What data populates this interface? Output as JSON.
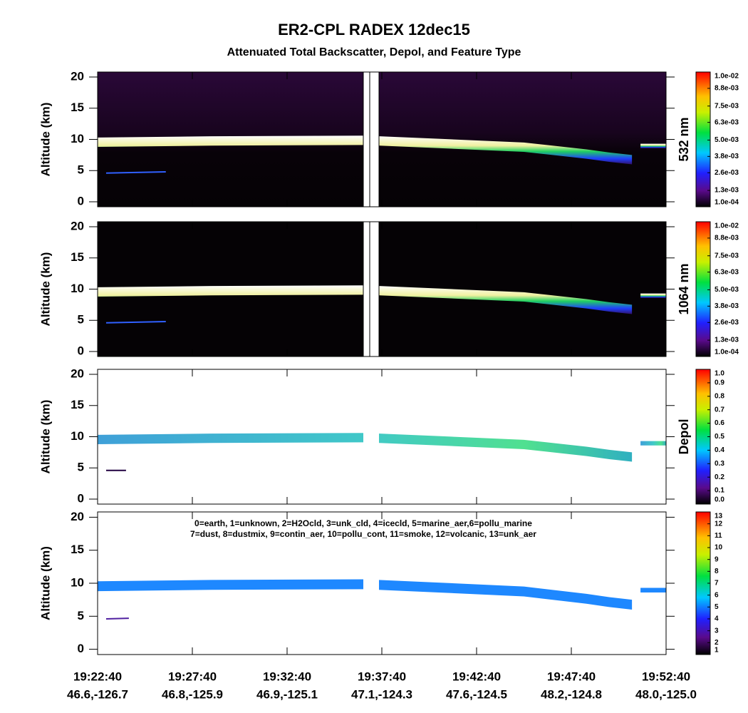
{
  "title": "ER2-CPL RADEX 12dec15",
  "subtitle": "Attenuated Total Backscatter, Depol, and Feature Type",
  "chart_data": [
    {
      "type": "heatmap",
      "ylabel": "Altitude (km)",
      "ylim": [
        -0.8,
        20.8
      ],
      "yticks": [
        0,
        5,
        10,
        15,
        20
      ],
      "colorbar": {
        "label": "532 nm",
        "clim": [
          0.0001,
          0.01
        ],
        "ticks": [
          {
            "value": 0.0001,
            "label": "1.0e-04"
          },
          {
            "value": 0.0013,
            "label": "1.3e-03"
          },
          {
            "value": 0.0026,
            "label": "2.6e-03"
          },
          {
            "value": 0.0038,
            "label": "3.8e-03"
          },
          {
            "value": 0.005,
            "label": "5.0e-03"
          },
          {
            "value": 0.0063,
            "label": "6.3e-03"
          },
          {
            "value": 0.0075,
            "label": "7.5e-03"
          },
          {
            "value": 0.0088,
            "label": "8.8e-03"
          },
          {
            "value": 0.01,
            "label": "1.0e-02"
          }
        ]
      }
    },
    {
      "type": "heatmap",
      "ylabel": "Altitude (km)",
      "ylim": [
        -0.8,
        20.8
      ],
      "yticks": [
        0,
        5,
        10,
        15,
        20
      ],
      "colorbar": {
        "label": "1064 nm",
        "clim": [
          0.0001,
          0.01
        ],
        "ticks": [
          {
            "value": 0.0001,
            "label": "1.0e-04"
          },
          {
            "value": 0.0013,
            "label": "1.3e-03"
          },
          {
            "value": 0.0026,
            "label": "2.6e-03"
          },
          {
            "value": 0.0038,
            "label": "3.8e-03"
          },
          {
            "value": 0.005,
            "label": "5.0e-03"
          },
          {
            "value": 0.0063,
            "label": "6.3e-03"
          },
          {
            "value": 0.0075,
            "label": "7.5e-03"
          },
          {
            "value": 0.0088,
            "label": "8.8e-03"
          },
          {
            "value": 0.01,
            "label": "1.0e-02"
          }
        ]
      }
    },
    {
      "type": "heatmap",
      "ylabel": "Altitude (km)",
      "ylim": [
        -0.8,
        20.8
      ],
      "yticks": [
        0,
        5,
        10,
        15,
        20
      ],
      "colorbar": {
        "label": "Depol",
        "clim": [
          0,
          1
        ],
        "ticks": [
          {
            "value": 0,
            "label": "0.0"
          },
          0.1,
          0.2,
          0.3,
          0.4,
          0.5,
          0.6,
          0.7,
          0.8,
          0.9,
          {
            "value": 1,
            "label": "1.0"
          }
        ]
      }
    },
    {
      "type": "heatmap",
      "ylabel": "Altitude (km)",
      "ylim": [
        -0.8,
        20.8
      ],
      "yticks": [
        0,
        5,
        10,
        15,
        20
      ],
      "annotations": [
        "0=earth, 1=unknown, 2=H2Ocld, 3=unk_cld, 4=icecld, 5=marine_aer,6=pollu_marine",
        "7=dust, 8=dustmix, 9=contin_aer, 10=pollu_cont, 11=smoke, 12=volcanic, 13=unk_aer"
      ],
      "x": [
        "19:22:40",
        "19:27:40",
        "19:32:40",
        "19:37:40",
        "19:42:40",
        "19:47:40",
        "19:52:40"
      ],
      "x_locations": [
        "46.6,-126.7",
        "46.8,-125.9",
        "46.9,-125.1",
        "47.1,-124.3",
        "47.6,-124.5",
        "48.2,-124.8",
        "48.0,-125.0"
      ],
      "colorbar": {
        "label": "",
        "clim": [
          1,
          13
        ],
        "ticks": [
          1,
          2,
          3,
          4,
          5,
          6,
          7,
          8,
          9,
          10,
          11,
          12,
          13
        ]
      }
    }
  ]
}
